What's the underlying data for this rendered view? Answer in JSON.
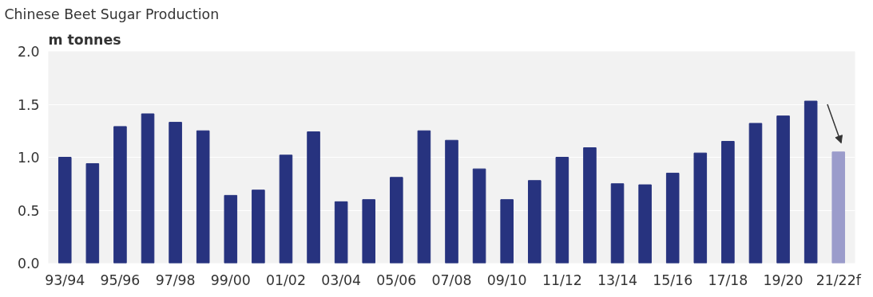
{
  "chart_data": {
    "type": "bar",
    "title": "Chinese Beet Sugar Production",
    "ylabel": "m tonnes",
    "categories": [
      "93/94",
      null,
      "95/96",
      null,
      "97/98",
      null,
      "99/00",
      null,
      "01/02",
      null,
      "03/04",
      null,
      "05/06",
      null,
      "07/08",
      null,
      "09/10",
      null,
      "11/12",
      null,
      "13/14",
      null,
      "15/16",
      null,
      "17/18",
      null,
      "19/20",
      null,
      "21/22f"
    ],
    "values": [
      1.0,
      0.94,
      1.29,
      1.41,
      1.33,
      1.25,
      0.64,
      0.69,
      1.02,
      1.24,
      0.58,
      0.6,
      0.81,
      1.25,
      1.16,
      0.89,
      0.6,
      0.78,
      1.0,
      1.09,
      0.75,
      0.74,
      0.85,
      1.04,
      1.15,
      1.32,
      1.39,
      1.53,
      1.05
    ],
    "colors": [
      "#27337f",
      "#27337f",
      "#27337f",
      "#27337f",
      "#27337f",
      "#27337f",
      "#27337f",
      "#27337f",
      "#27337f",
      "#27337f",
      "#27337f",
      "#27337f",
      "#27337f",
      "#27337f",
      "#27337f",
      "#27337f",
      "#27337f",
      "#27337f",
      "#27337f",
      "#27337f",
      "#27337f",
      "#27337f",
      "#27337f",
      "#27337f",
      "#27337f",
      "#27337f",
      "#27337f",
      "#27337f",
      "#9b9ccb"
    ],
    "ylim": [
      0,
      2.0
    ],
    "yticks": [
      {
        "value": 0,
        "label": "0.0"
      },
      {
        "value": 0.5,
        "label": "0.5"
      },
      {
        "value": 1.0,
        "label": "1.0"
      },
      {
        "value": 1.5,
        "label": "1.5"
      },
      {
        "value": 2.0,
        "label": "2.0"
      }
    ],
    "grid": "y"
  }
}
